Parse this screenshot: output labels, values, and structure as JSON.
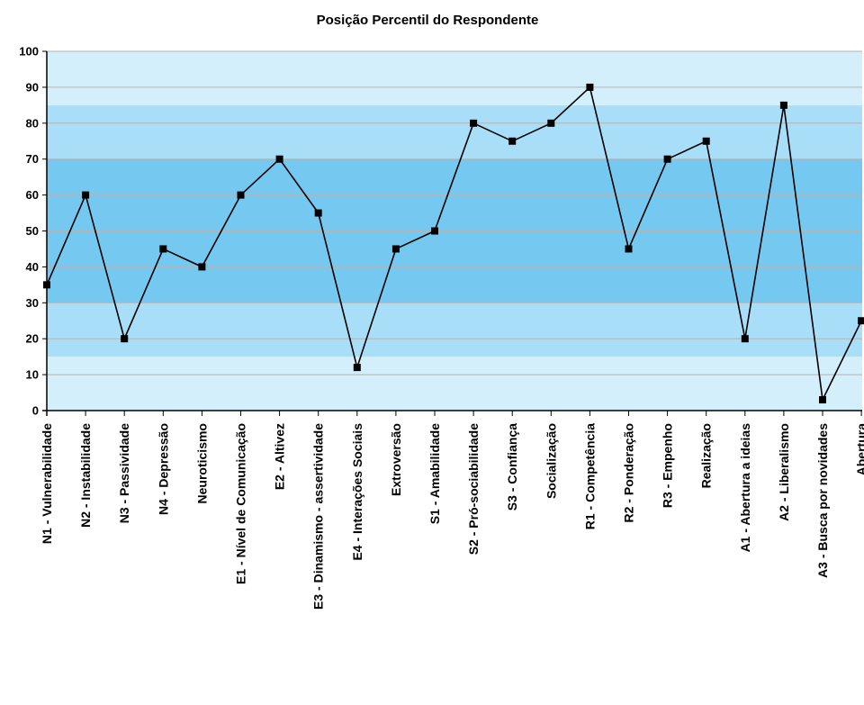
{
  "chart_data": {
    "type": "line",
    "title": "Posição Percentil do Respondente",
    "xlabel": "",
    "ylabel": "",
    "ylim": [
      0,
      100
    ],
    "yticks": [
      0,
      10,
      20,
      30,
      40,
      50,
      60,
      70,
      80,
      90,
      100
    ],
    "grid": true,
    "legend": "none",
    "bands": [
      {
        "from": 0,
        "to": 15,
        "color": "#d3effb"
      },
      {
        "from": 15,
        "to": 30,
        "color": "#a8def7"
      },
      {
        "from": 30,
        "to": 70,
        "color": "#75c9f0"
      },
      {
        "from": 70,
        "to": 85,
        "color": "#a8def7"
      },
      {
        "from": 85,
        "to": 100,
        "color": "#d3effb"
      }
    ],
    "line_color": "#000000",
    "gridline_color": "#b4b4b4",
    "categories": [
      "N1 - Vulnerabilidade",
      "N2 - Instabilidade",
      "N3 - Passividade",
      "N4 - Depressão",
      "Neuroticismo",
      "E1 - Nível de Comunicação",
      "E2 - Altivez",
      "E3 - Dinamismo - assertividade",
      "E4 - Interações Sociais",
      "Extroversão",
      "S1 - Amabilidade",
      "S2 - Pró-sociabilidade",
      "S3 - Confiança",
      "Socialização",
      "R1 - Competência",
      "R2 - Ponderação",
      "R3 - Empenho",
      "Realização",
      "A1 - Abertura a ideias",
      "A2 - Liberalismo",
      "A3 - Busca por novidades",
      "Abertura"
    ],
    "values": [
      35,
      60,
      20,
      45,
      40,
      60,
      70,
      55,
      12,
      45,
      50,
      80,
      75,
      80,
      90,
      45,
      70,
      75,
      20,
      85,
      3,
      25
    ]
  }
}
